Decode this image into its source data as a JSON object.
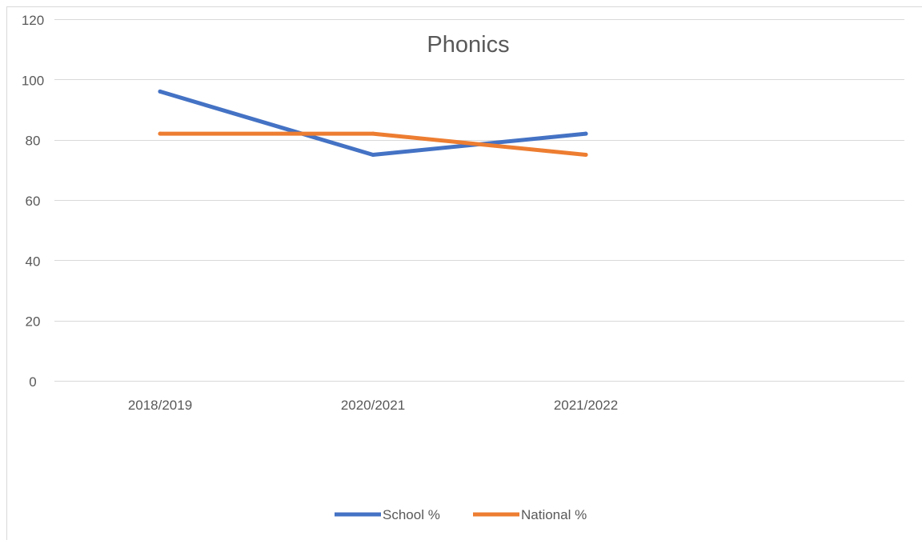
{
  "chart_data": {
    "type": "line",
    "title": "Phonics",
    "xlabel": "",
    "ylabel": "",
    "categories": [
      "2018/2019",
      "2020/2021",
      "2021/2022"
    ],
    "ylim": [
      0,
      120
    ],
    "yticks": [
      "0",
      "20",
      "40",
      "60",
      "80",
      "100",
      "120"
    ],
    "grid": true,
    "legend_position": "bottom",
    "series": [
      {
        "name": "School %",
        "values": [
          96,
          75,
          82
        ],
        "color": "#4472C4"
      },
      {
        "name": "National %",
        "values": [
          82,
          82,
          75
        ],
        "color": "#ED7D31"
      }
    ]
  }
}
